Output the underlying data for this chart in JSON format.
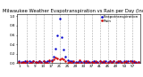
{
  "title": "Milwaukee Weather Evapotranspiration vs Rain per Day (Inches)",
  "background_color": "#ffffff",
  "grid_color": "#888888",
  "legend_et": "Evapotranspiration",
  "legend_rain": "Rain",
  "et_color": "#0000cc",
  "rain_color": "#cc0000",
  "et_data": [
    0.04,
    0.03,
    0.03,
    0.04,
    0.03,
    0.04,
    0.03,
    0.04,
    0.03,
    0.03,
    0.04,
    0.03,
    0.04,
    0.03,
    0.04,
    0.05,
    0.07,
    0.14,
    0.3,
    0.6,
    0.95,
    0.55,
    0.28,
    0.14,
    0.07,
    0.05,
    0.04,
    0.03,
    0.03,
    0.03,
    0.04,
    0.03,
    0.03,
    0.04,
    0.03,
    0.03,
    0.03,
    0.04,
    0.03,
    0.03,
    0.04,
    0.03,
    0.03,
    0.04,
    0.03,
    0.04,
    0.03,
    0.04,
    0.03,
    0.03,
    0.04,
    0.03,
    0.04,
    0.03,
    0.04,
    0.05,
    0.04,
    0.03,
    0.03,
    0.03
  ],
  "rain_data": [
    0.02,
    0.0,
    0.03,
    0.0,
    0.04,
    0.0,
    0.0,
    0.04,
    0.02,
    0.0,
    0.05,
    0.0,
    0.04,
    0.0,
    0.0,
    0.06,
    0.04,
    0.08,
    0.12,
    0.1,
    0.08,
    0.1,
    0.08,
    0.04,
    0.0,
    0.03,
    0.0,
    0.04,
    0.0,
    0.0,
    0.07,
    0.0,
    0.04,
    0.0,
    0.04,
    0.0,
    0.03,
    0.0,
    0.04,
    0.0,
    0.05,
    0.0,
    0.04,
    0.0,
    0.0,
    0.04,
    0.0,
    0.04,
    0.0,
    0.04,
    0.04,
    0.0,
    0.03,
    0.05,
    0.0,
    0.04,
    0.0,
    0.04,
    0.0,
    0.03
  ],
  "xlim": [
    0,
    61
  ],
  "ylim": [
    0.0,
    1.05
  ],
  "xtick_positions": [
    1,
    5,
    9,
    13,
    17,
    21,
    25,
    29,
    33,
    37,
    41,
    45,
    49,
    53,
    57
  ],
  "xtick_labels": [
    "1",
    "5",
    "9",
    "13",
    "17",
    "21",
    "25",
    "29",
    "33",
    "37",
    "41",
    "45",
    "49",
    "53",
    "57"
  ],
  "vline_positions": [
    5,
    9,
    13,
    17,
    21,
    25,
    29,
    33,
    37,
    41,
    45,
    49,
    53,
    57
  ],
  "marker_size": 1.5,
  "title_fontsize": 3.8,
  "tick_fontsize": 3.0,
  "legend_fontsize": 3.0
}
